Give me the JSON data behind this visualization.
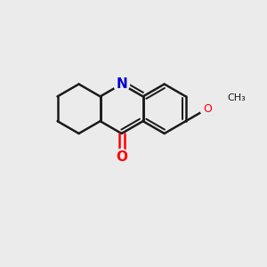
{
  "bg_color": "#ebebeb",
  "bond_color": "#1a1a1a",
  "bond_width": 1.8,
  "atom_colors": {
    "O": "#ff0000",
    "N": "#0000cc",
    "C": "#1a1a1a"
  },
  "ring_r": 28,
  "lc": [
    88,
    178
  ],
  "figsize": [
    3.0,
    3.0
  ],
  "dpi": 100
}
